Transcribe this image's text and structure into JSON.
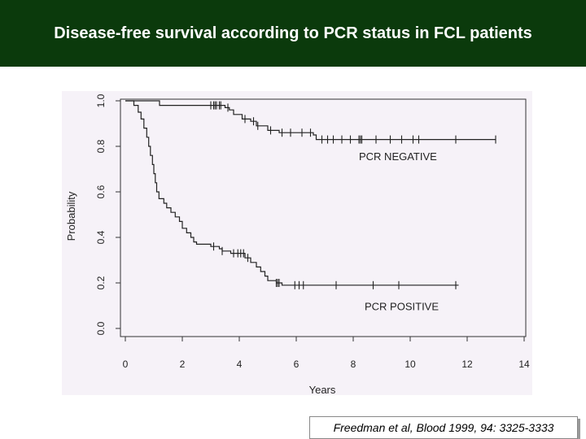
{
  "header": {
    "title": "Disease-free survival according to PCR status in FCL patients",
    "background": "#0b3a0c",
    "text_color": "#ffffff"
  },
  "citation": "Freedman et al, Blood 1999, 94: 3325-3333",
  "chart_data": {
    "type": "line",
    "subtype": "kaplan-meier step curve",
    "title": "",
    "xlabel": "Years",
    "ylabel": "Probability",
    "xlim": [
      0,
      14
    ],
    "ylim": [
      0,
      1
    ],
    "x_ticks": [
      0,
      2,
      4,
      6,
      8,
      10,
      12,
      14
    ],
    "y_ticks": [
      0.0,
      0.2,
      0.4,
      0.6,
      0.8,
      1.0
    ],
    "x_tick_labels": [
      "0",
      "2",
      "4",
      "6",
      "8",
      "10",
      "12",
      "14"
    ],
    "y_tick_labels": [
      "0.0",
      "0.2",
      "0.4",
      "0.6",
      "0.8",
      "1.0"
    ],
    "grid": false,
    "series": [
      {
        "name": "PCR NEGATIVE",
        "color": "#222222",
        "steps": [
          [
            0.0,
            1.0
          ],
          [
            1.2,
            0.98
          ],
          [
            3.5,
            0.97
          ],
          [
            3.65,
            0.96
          ],
          [
            3.8,
            0.94
          ],
          [
            4.1,
            0.92
          ],
          [
            4.4,
            0.91
          ],
          [
            4.6,
            0.89
          ],
          [
            5.0,
            0.87
          ],
          [
            5.4,
            0.86
          ],
          [
            6.6,
            0.85
          ],
          [
            6.7,
            0.83
          ],
          [
            13.0,
            0.83
          ]
        ],
        "censor_x": [
          3.0,
          3.1,
          3.15,
          3.2,
          3.3,
          3.35,
          3.6,
          4.2,
          4.5,
          4.65,
          5.1,
          5.5,
          5.8,
          6.2,
          6.5,
          6.9,
          7.1,
          7.3,
          7.6,
          7.9,
          8.2,
          8.25,
          8.3,
          8.8,
          9.3,
          9.7,
          10.1,
          10.3,
          11.6,
          13.0
        ]
      },
      {
        "name": "PCR POSITIVE",
        "color": "#222222",
        "steps": [
          [
            0.0,
            1.0
          ],
          [
            0.3,
            0.98
          ],
          [
            0.45,
            0.95
          ],
          [
            0.55,
            0.92
          ],
          [
            0.65,
            0.88
          ],
          [
            0.75,
            0.84
          ],
          [
            0.82,
            0.8
          ],
          [
            0.88,
            0.76
          ],
          [
            0.95,
            0.72
          ],
          [
            1.0,
            0.68
          ],
          [
            1.05,
            0.64
          ],
          [
            1.1,
            0.6
          ],
          [
            1.18,
            0.57
          ],
          [
            1.35,
            0.55
          ],
          [
            1.45,
            0.53
          ],
          [
            1.6,
            0.51
          ],
          [
            1.75,
            0.49
          ],
          [
            1.9,
            0.47
          ],
          [
            2.0,
            0.44
          ],
          [
            2.15,
            0.42
          ],
          [
            2.3,
            0.4
          ],
          [
            2.4,
            0.38
          ],
          [
            2.5,
            0.37
          ],
          [
            3.0,
            0.36
          ],
          [
            3.3,
            0.35
          ],
          [
            3.4,
            0.34
          ],
          [
            3.7,
            0.33
          ],
          [
            4.2,
            0.31
          ],
          [
            4.4,
            0.29
          ],
          [
            4.6,
            0.27
          ],
          [
            4.75,
            0.25
          ],
          [
            4.9,
            0.23
          ],
          [
            5.0,
            0.21
          ],
          [
            5.3,
            0.2
          ],
          [
            5.5,
            0.19
          ],
          [
            11.7,
            0.19
          ]
        ],
        "censor_x": [
          3.1,
          3.4,
          3.8,
          3.95,
          4.05,
          4.15,
          4.3,
          5.3,
          5.35,
          5.4,
          5.95,
          6.1,
          6.25,
          7.4,
          8.7,
          9.6,
          11.6
        ]
      }
    ],
    "annotations": [
      {
        "text": "PCR NEGATIVE",
        "x": 8.2,
        "y": 0.74
      },
      {
        "text": "PCR POSITIVE",
        "x": 8.4,
        "y": 0.08
      }
    ]
  }
}
